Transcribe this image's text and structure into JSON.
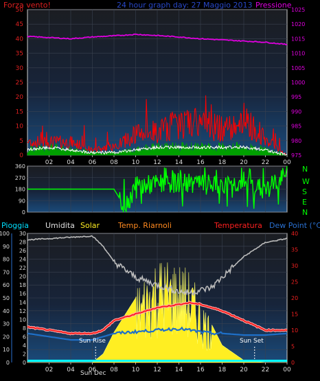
{
  "header": {
    "left": "Forza vento!",
    "center": "24 hour graph day: 27 Maggio 2013",
    "right": "Pressione"
  },
  "wind_dir_labels": [
    "N",
    "W",
    "S",
    "E",
    "N"
  ],
  "bottom_legend": {
    "rain": "Pioggia",
    "humidity": "Umidita",
    "solar": "Solar",
    "indoor": "Temp. Riarnoli",
    "temperature": "Temperatura",
    "dewpoint": "Dew Point (°C)"
  },
  "annotations": {
    "sunrise": "Sun Rise",
    "sunset": "Sun Set",
    "x_overlap": "Sun Dec"
  },
  "colors": {
    "wind_gust": "#ff0000",
    "wind_avg": "#00a000",
    "wind_line": "#ffffff",
    "pressure": "#e000e0",
    "wind_dir": "#00ff00",
    "humidity": "#bbbbbb",
    "solar": "#ffee22",
    "temperature": "#ff2020",
    "temp_outline": "#ffb0b0",
    "dewpoint": "#1f70c8",
    "rain": "#00ffff"
  },
  "chart_data": [
    {
      "type": "line",
      "panel": "wind-pressure",
      "x_ticks": [
        "02",
        "04",
        "06",
        "08",
        "10",
        "12",
        "14",
        "16",
        "18",
        "20",
        "22",
        "00"
      ],
      "y_left_ticks": [
        "0",
        "5",
        "10",
        "15",
        "20",
        "25",
        "30",
        "35",
        "40",
        "45",
        "50"
      ],
      "y_left_lim": [
        0,
        50
      ],
      "y_right_ticks": [
        "975",
        "980",
        "985",
        "990",
        "995",
        "1000",
        "1005",
        "1010",
        "1015",
        "1020",
        "1025"
      ],
      "y_right_lim": [
        975,
        1025
      ],
      "x_hours": [
        0,
        2,
        4,
        6,
        8,
        10,
        12,
        14,
        16,
        18,
        20,
        22,
        24
      ],
      "series": [
        {
          "key": "pressure",
          "axis": "right",
          "values": [
            1015.8,
            1015.4,
            1015.0,
            1015.6,
            1016.0,
            1016.5,
            1016.1,
            1015.6,
            1015.0,
            1014.6,
            1014.2,
            1013.8,
            1013.0
          ]
        },
        {
          "key": "gust",
          "axis": "left",
          "values": [
            5,
            5,
            5,
            2,
            3,
            8,
            9,
            12,
            12,
            10,
            14,
            6,
            0
          ]
        },
        {
          "key": "avg",
          "axis": "left",
          "values": [
            2,
            3,
            2,
            1,
            1,
            2,
            3,
            3,
            3,
            3,
            3,
            2,
            0
          ]
        }
      ]
    },
    {
      "type": "scatter",
      "panel": "wind-direction",
      "y_ticks": [
        "0",
        "90",
        "180",
        "270",
        "360"
      ],
      "y_lim": [
        0,
        360
      ],
      "x_hours": [
        0,
        4,
        6,
        8,
        9,
        10,
        12,
        14,
        16,
        18,
        20,
        22,
        24
      ],
      "values": [
        180,
        180,
        180,
        180,
        40,
        200,
        220,
        230,
        220,
        200,
        240,
        170,
        300
      ]
    },
    {
      "type": "line",
      "panel": "temperature-humidity-solar-rain",
      "x_ticks": [
        "02",
        "04",
        "06",
        "08",
        "10",
        "12",
        "14",
        "16",
        "18",
        "20",
        "22",
        "00"
      ],
      "y_left_ticks": [
        "0",
        "10",
        "20",
        "30",
        "40",
        "50",
        "60",
        "70",
        "80",
        "90",
        "100"
      ],
      "y_left_lim": [
        0,
        100
      ],
      "y_left2_ticks": [
        "0",
        "2",
        "4",
        "6",
        "8",
        "10",
        "12",
        "14",
        "16",
        "18",
        "20",
        "22",
        "24",
        "26",
        "28",
        "30"
      ],
      "y_left2_lim": [
        0,
        30
      ],
      "y_right_ticks": [
        "0",
        "5",
        "10",
        "15",
        "20",
        "25",
        "30",
        "35",
        "40"
      ],
      "y_right_lim": [
        0,
        40
      ],
      "x_hours": [
        0,
        2,
        4,
        6,
        7,
        8,
        10,
        12,
        14,
        15,
        16,
        17,
        18,
        20,
        22,
        24
      ],
      "series": [
        {
          "key": "humidity",
          "axis": "left",
          "values": [
            95,
            96,
            97,
            98,
            90,
            78,
            66,
            60,
            55,
            54,
            56,
            58,
            66,
            82,
            93,
            96
          ]
        },
        {
          "key": "temperature",
          "axis": "right",
          "values": [
            11,
            10,
            9,
            9,
            10,
            13,
            15,
            17,
            18,
            18.5,
            18,
            17,
            16,
            13,
            10,
            10
          ]
        },
        {
          "key": "dewpoint",
          "axis": "right",
          "values": [
            9,
            8,
            7,
            7,
            8,
            9,
            9.5,
            10,
            10.5,
            10,
            9.5,
            9,
            9,
            8.5,
            8.5,
            9
          ]
        },
        {
          "key": "solar",
          "axis": "left2",
          "values": [
            0,
            0,
            0,
            0,
            2,
            7,
            15,
            21,
            20,
            18,
            13,
            9,
            4,
            0.5,
            0,
            0
          ]
        },
        {
          "key": "rain",
          "axis": "left",
          "values": [
            0,
            0,
            0,
            0,
            0,
            0,
            0,
            0,
            0,
            0,
            0,
            0,
            0,
            0,
            0,
            0
          ]
        }
      ]
    }
  ]
}
